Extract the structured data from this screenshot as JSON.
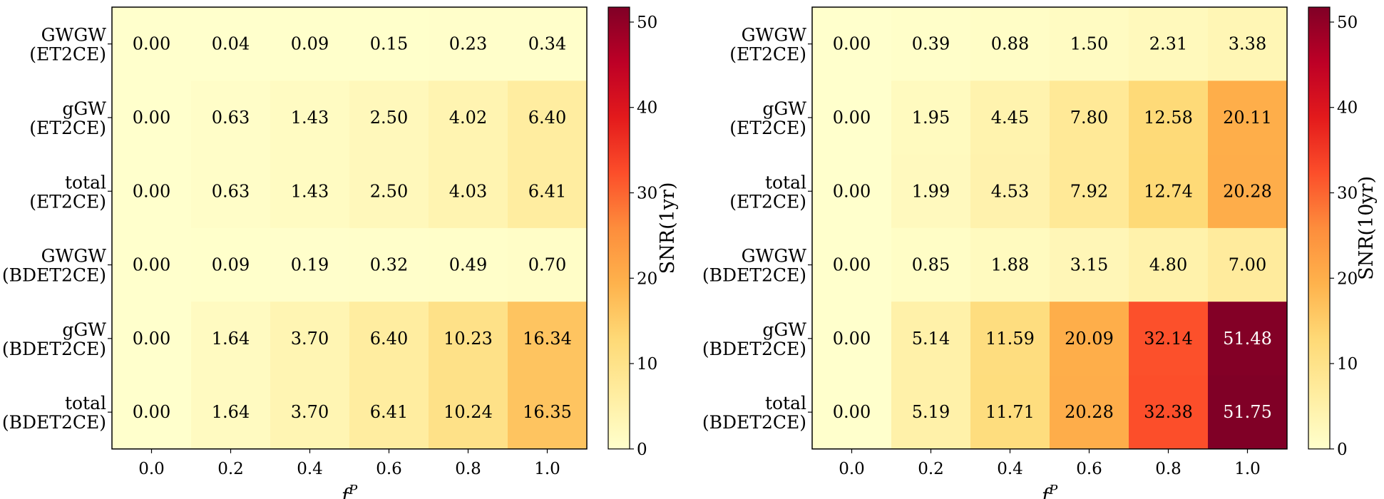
{
  "chart_data": [
    {
      "type": "heatmap",
      "rows": [
        "GWGW\n(ET2CE)",
        "gGW\n(ET2CE)",
        "total\n(ET2CE)",
        "GWGW\n(BDET2CE)",
        "gGW\n(BDET2CE)",
        "total\n(BDET2CE)"
      ],
      "columns": [
        "0.0",
        "0.2",
        "0.4",
        "0.6",
        "0.8",
        "1.0"
      ],
      "values": [
        [
          0.0,
          0.04,
          0.09,
          0.15,
          0.23,
          0.34
        ],
        [
          0.0,
          0.63,
          1.43,
          2.5,
          4.02,
          6.4
        ],
        [
          0.0,
          0.63,
          1.43,
          2.5,
          4.03,
          6.41
        ],
        [
          0.0,
          0.09,
          0.19,
          0.32,
          0.49,
          0.7
        ],
        [
          0.0,
          1.64,
          3.7,
          6.4,
          10.23,
          16.34
        ],
        [
          0.0,
          1.64,
          3.7,
          6.41,
          10.24,
          16.35
        ]
      ],
      "xlabel": "f^P",
      "colorbar": {
        "label": "SNR(1yr)",
        "ticks": [
          "0",
          "10",
          "20",
          "30",
          "40",
          "50"
        ],
        "range": [
          0,
          51.75
        ],
        "colormap": "YlOrRd"
      }
    },
    {
      "type": "heatmap",
      "rows": [
        "GWGW\n(ET2CE)",
        "gGW\n(ET2CE)",
        "total\n(ET2CE)",
        "GWGW\n(BDET2CE)",
        "gGW\n(BDET2CE)",
        "total\n(BDET2CE)"
      ],
      "columns": [
        "0.0",
        "0.2",
        "0.4",
        "0.6",
        "0.8",
        "1.0"
      ],
      "values": [
        [
          0.0,
          0.39,
          0.88,
          1.5,
          2.31,
          3.38
        ],
        [
          0.0,
          1.95,
          4.45,
          7.8,
          12.58,
          20.11
        ],
        [
          0.0,
          1.99,
          4.53,
          7.92,
          12.74,
          20.28
        ],
        [
          0.0,
          0.85,
          1.88,
          3.15,
          4.8,
          7.0
        ],
        [
          0.0,
          5.14,
          11.59,
          20.09,
          32.14,
          51.48
        ],
        [
          0.0,
          5.19,
          11.71,
          20.28,
          32.38,
          51.75
        ]
      ],
      "xlabel": "f^P",
      "colorbar": {
        "label": "SNR(10yr)",
        "ticks": [
          "0",
          "10",
          "20",
          "30",
          "40",
          "50"
        ],
        "range": [
          0,
          51.75
        ],
        "colormap": "YlOrRd"
      }
    }
  ]
}
